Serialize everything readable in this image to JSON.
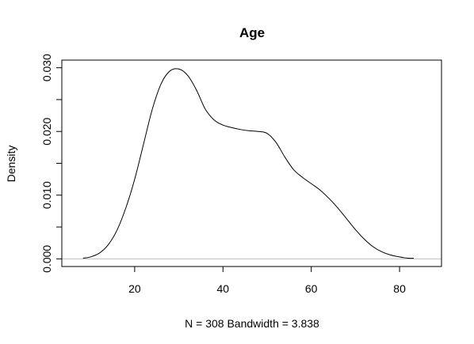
{
  "chart_data": {
    "type": "line",
    "title": "Age",
    "xlabel": "N = 308   Bandwidth = 3.838",
    "ylabel": "Density",
    "xlim": [
      3.5,
      89.5
    ],
    "ylim": [
      -0.0012,
      0.0312
    ],
    "x_ticks": [
      20,
      40,
      60,
      80
    ],
    "x_tick_labels": [
      "20",
      "40",
      "60",
      "80"
    ],
    "y_ticks": [
      0,
      0.005,
      0.01,
      0.015,
      0.02,
      0.025,
      0.03
    ],
    "y_tick_labels": [
      "0.000",
      "",
      "0.010",
      "",
      "0.020",
      "",
      "0.030"
    ],
    "baseline": 0,
    "grid": false,
    "colors": {
      "line": "#000000",
      "baseline": "#bebebe",
      "frame": "#000000"
    },
    "series": [
      {
        "x": [
          8.3,
          10,
          12,
          14,
          16,
          18,
          20,
          22,
          24,
          26,
          28,
          30,
          32,
          34,
          36,
          38,
          40,
          42,
          44,
          46,
          48,
          50,
          52,
          54,
          56,
          58,
          60,
          62,
          64,
          66,
          68,
          70,
          72,
          74,
          76,
          78,
          80,
          82,
          83.2
        ],
        "y": [
          0.0001,
          0.0003,
          0.0009,
          0.0022,
          0.0045,
          0.008,
          0.0125,
          0.018,
          0.0235,
          0.0275,
          0.0295,
          0.0298,
          0.0288,
          0.0265,
          0.0235,
          0.0218,
          0.021,
          0.0206,
          0.0203,
          0.0201,
          0.02,
          0.0197,
          0.0183,
          0.016,
          0.014,
          0.0128,
          0.0118,
          0.0108,
          0.0095,
          0.008,
          0.0063,
          0.0046,
          0.0031,
          0.0019,
          0.0011,
          0.0006,
          0.0003,
          0.0001,
          0.0001
        ]
      }
    ]
  }
}
